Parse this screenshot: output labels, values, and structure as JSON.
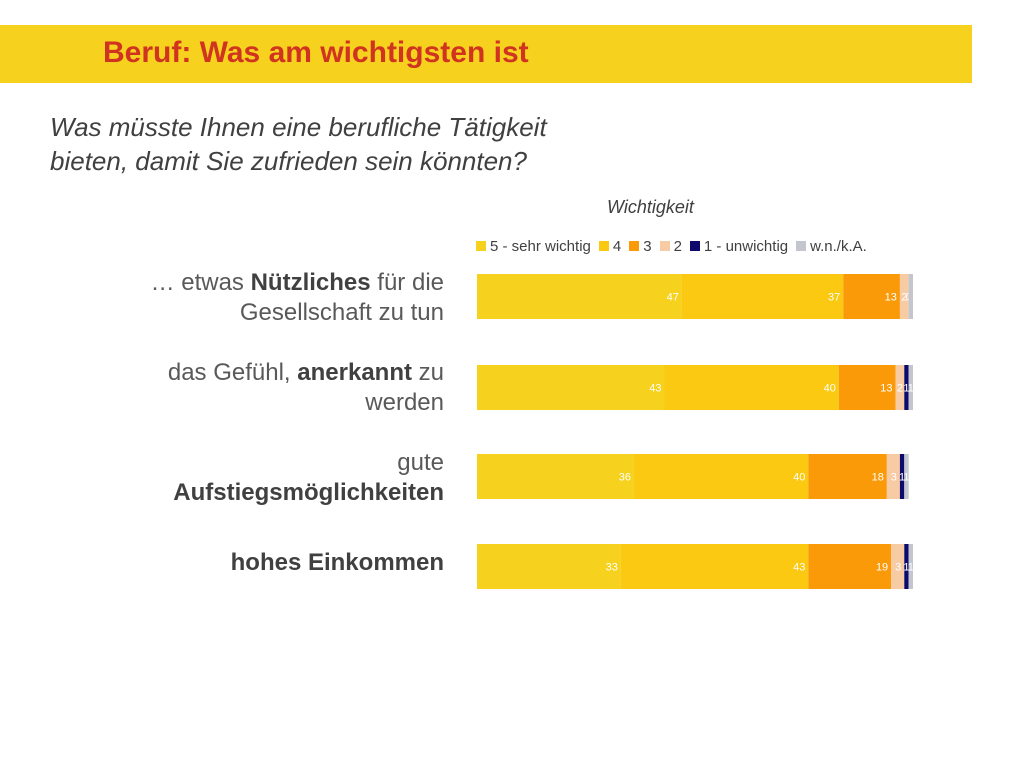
{
  "header": {
    "title": "Beruf: Was am wichtigsten ist"
  },
  "question": {
    "line1": "Was müsste Ihnen eine berufliche Tätigkeit",
    "line2": "bieten, damit Sie zufrieden sein könnten?"
  },
  "colors": {
    "banner": "#f6d21e",
    "title_text": "#d0331f"
  },
  "chart_data": {
    "type": "bar",
    "orientation": "horizontal",
    "stacked": true,
    "title": "Wichtigkeit",
    "legend_position": "top",
    "categories": [
      "… etwas Nützliches für die Gesellschaft zu tun",
      "das Gefühl, anerkannt zu werden",
      "gute Aufstiegsmöglichkeiten",
      "hohes Einkommen"
    ],
    "category_parts": [
      [
        {
          "text": "… etwas ",
          "bold": false
        },
        {
          "text": "Nützliches",
          "bold": true
        },
        {
          "text": " für die",
          "bold": false
        },
        {
          "text": "\n",
          "bold": false
        },
        {
          "text": "Gesellschaft zu tun",
          "bold": false
        }
      ],
      [
        {
          "text": "das Gefühl, ",
          "bold": false
        },
        {
          "text": "anerkannt",
          "bold": true
        },
        {
          "text": " zu",
          "bold": false
        },
        {
          "text": "\n",
          "bold": false
        },
        {
          "text": "werden",
          "bold": false
        }
      ],
      [
        {
          "text": "gute",
          "bold": false
        },
        {
          "text": "\n",
          "bold": false
        },
        {
          "text": "Aufstiegsmöglichkeiten",
          "bold": true
        }
      ],
      [
        {
          "text": "hohes Einkommen",
          "bold": true
        }
      ]
    ],
    "series": [
      {
        "name": "5 - sehr wichtig",
        "color": "#f6d21e",
        "values": [
          47,
          43,
          36,
          33
        ]
      },
      {
        "name": "4",
        "color": "#fbc812",
        "values": [
          37,
          40,
          40,
          43
        ]
      },
      {
        "name": "3",
        "color": "#fb9a08",
        "values": [
          13,
          13,
          18,
          19
        ]
      },
      {
        "name": "2",
        "color": "#f7cba3",
        "values": [
          2,
          2,
          3,
          3
        ]
      },
      {
        "name": "1 - unwichtig",
        "color": "#0d0a6b",
        "values": [
          0,
          1,
          1,
          1
        ]
      },
      {
        "name": "w.n./k.A.",
        "color": "#c4c6cf",
        "values": [
          1,
          1,
          1,
          1
        ]
      }
    ],
    "data_labels": [
      [
        "47",
        "37",
        "13",
        "2",
        "0",
        ""
      ],
      [
        "43",
        "40",
        "13",
        "2",
        "1",
        "1"
      ],
      [
        "36",
        "40",
        "18",
        "3",
        "1",
        "1"
      ],
      [
        "33",
        "43",
        "19",
        "3",
        "1",
        "1"
      ]
    ],
    "xlim": [
      0,
      100
    ]
  }
}
